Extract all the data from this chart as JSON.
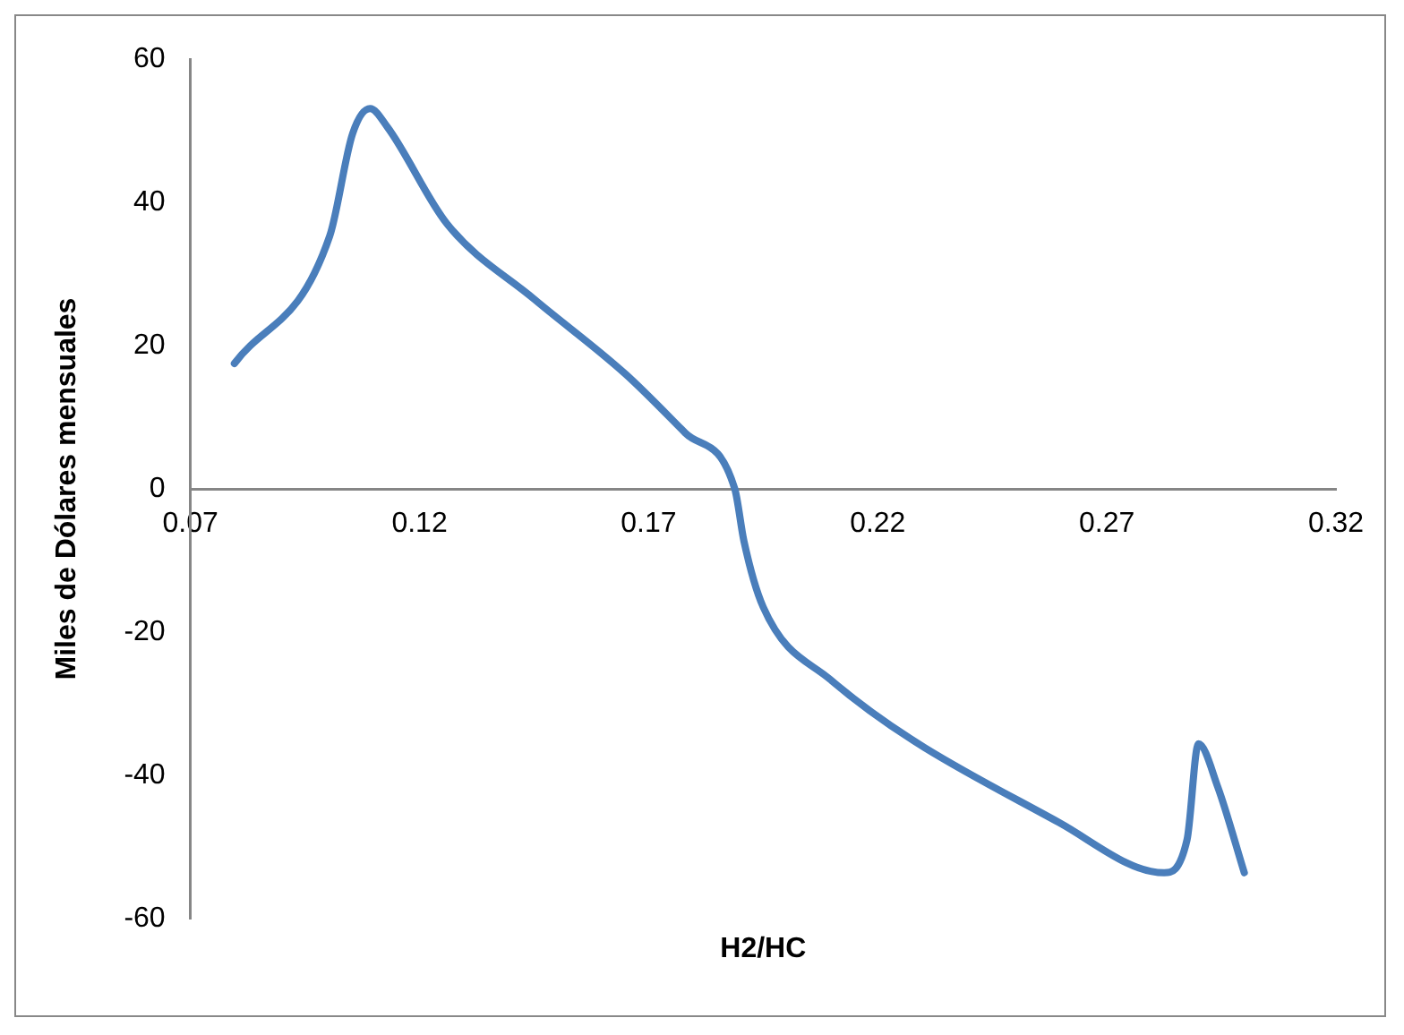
{
  "chart_data": {
    "type": "line",
    "xlabel": "H2/HC",
    "ylabel": "Miles de Dólares mensuales",
    "x": [
      0.0796,
      0.1004,
      0.1054,
      0.1092,
      0.113,
      0.126,
      0.145,
      0.165,
      0.178,
      0.1888,
      0.1908,
      0.195,
      0.2096,
      0.2596,
      0.2825,
      0.2875,
      0.29,
      0.2942,
      0.3
    ],
    "series": [
      {
        "color": "#4a7ebb",
        "values": [
          17.5,
          35.3,
          49.6,
          53.1,
          50.5,
          37,
          26.5,
          16,
          7.8,
          0,
          -7.3,
          -16.5,
          -26.6,
          -46.6,
          -53.6,
          -49,
          -35.6,
          -41.6,
          -53.6
        ]
      }
    ],
    "xlim": [
      0.07,
      0.32
    ],
    "xticks": [
      0.07,
      0.12,
      0.17,
      0.22,
      0.27,
      0.32
    ],
    "ylim": [
      -60,
      60
    ],
    "yticks": [
      -60,
      -40,
      -20,
      0,
      20,
      40,
      60
    ],
    "grid": false,
    "legend": false,
    "marker": "none",
    "line_style": "solid"
  }
}
